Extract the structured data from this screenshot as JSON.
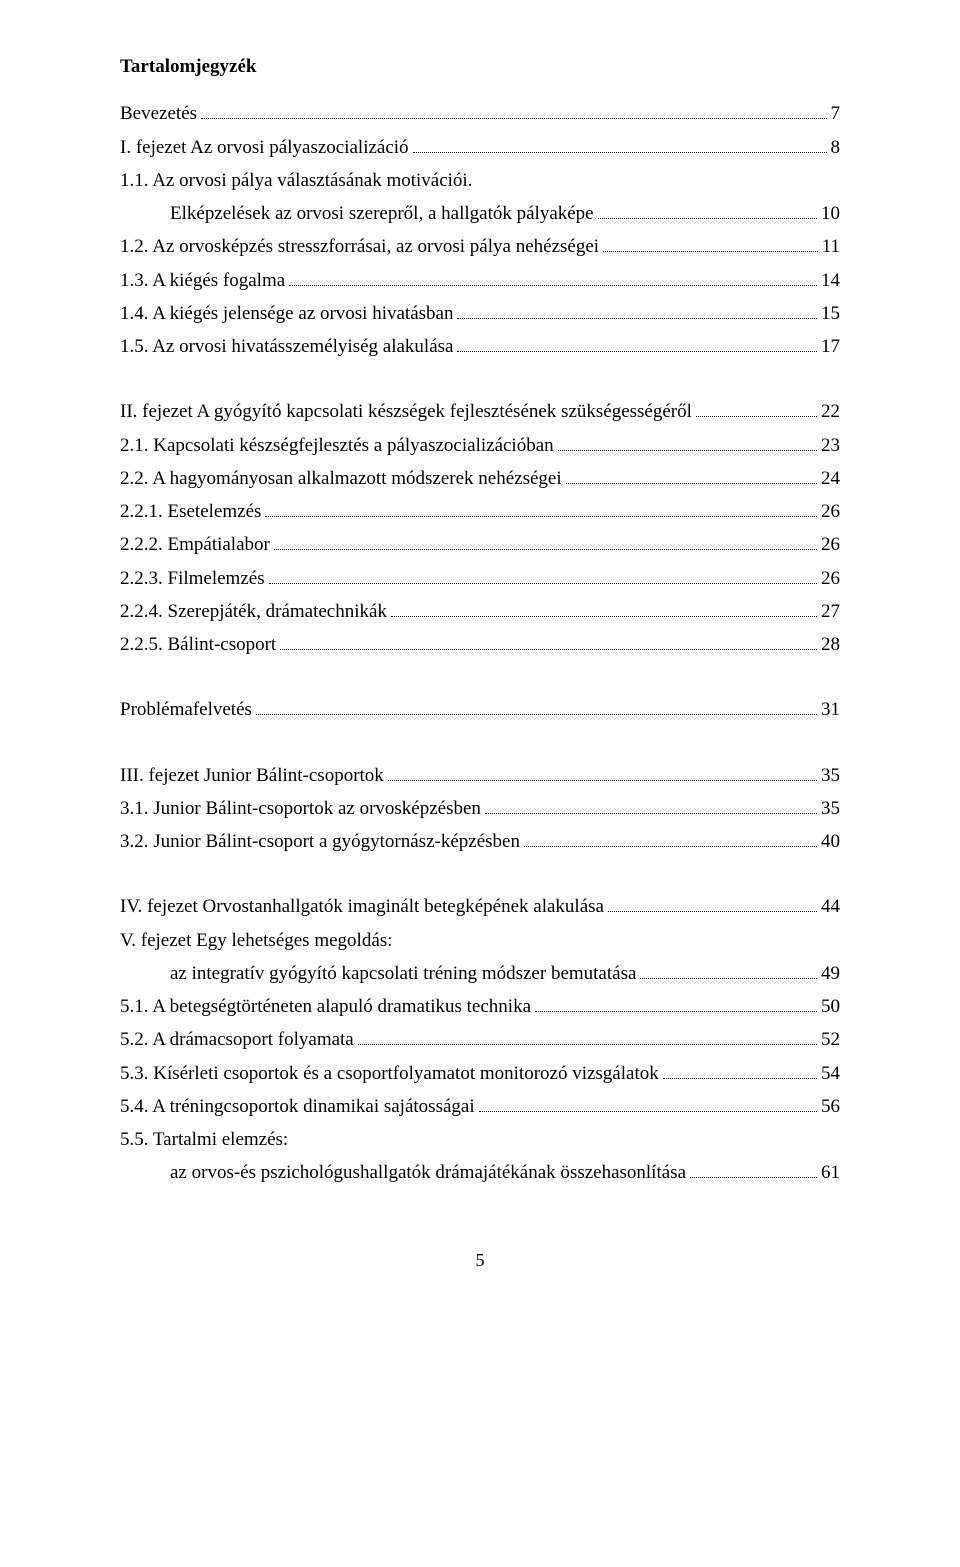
{
  "title": "Tartalomjegyzék",
  "page_number": "5",
  "toc": [
    {
      "label": "Bevezetés",
      "page": "7",
      "indent": 0,
      "gap": false
    },
    {
      "label": "I. fejezet Az orvosi pályaszocializáció",
      "page": "8",
      "indent": 0,
      "gap": false
    },
    {
      "label": "1.1. Az orvosi pálya választásának motivációi.",
      "page": "",
      "indent": 0,
      "gap": false,
      "no_page": true
    },
    {
      "label": "Elképzelések az orvosi szerepről, a hallgatók pályaképe",
      "page": "10",
      "indent": 1,
      "gap": false
    },
    {
      "label": "1.2. Az orvosképzés stresszforrásai, az orvosi pálya nehézségei",
      "page": "11",
      "indent": 0,
      "gap": false
    },
    {
      "label": "1.3. A kiégés fogalma",
      "page": "14",
      "indent": 0,
      "gap": false
    },
    {
      "label": "1.4. A kiégés jelensége az orvosi hivatásban",
      "page": "15",
      "indent": 0,
      "gap": false
    },
    {
      "label": "1.5. Az orvosi hivatásszemélyiség alakulása",
      "page": "17",
      "indent": 0,
      "gap": false
    },
    {
      "label": "II. fejezet  A gyógyító kapcsolati készségek fejlesztésének szükségességéről",
      "page": "22",
      "indent": 0,
      "gap": true
    },
    {
      "label": "2.1. Kapcsolati készségfejlesztés a pályaszocializációban",
      "page": "23",
      "indent": 0,
      "gap": false
    },
    {
      "label": "2.2. A hagyományosan alkalmazott módszerek nehézségei",
      "page": "24",
      "indent": 0,
      "gap": false
    },
    {
      "label": "2.2.1. Esetelemzés",
      "page": "26",
      "indent": 0,
      "gap": false
    },
    {
      "label": "2.2.2. Empátialabor",
      "page": "26",
      "indent": 0,
      "gap": false
    },
    {
      "label": "2.2.3. Filmelemzés",
      "page": "26",
      "indent": 0,
      "gap": false
    },
    {
      "label": "2.2.4. Szerepjáték, drámatechnikák",
      "page": "27",
      "indent": 0,
      "gap": false
    },
    {
      "label": "2.2.5. Bálint-csoport",
      "page": "28",
      "indent": 0,
      "gap": false
    },
    {
      "label": "Problémafelvetés",
      "page": "31",
      "indent": 0,
      "gap": true
    },
    {
      "label": "III. fejezet Junior Bálint-csoportok",
      "page": "35",
      "indent": 0,
      "gap": true
    },
    {
      "label": "3.1. Junior Bálint-csoportok az orvosképzésben",
      "page": "35",
      "indent": 0,
      "gap": false
    },
    {
      "label": "3.2. Junior Bálint-csoport a gyógytornász-képzésben",
      "page": "40",
      "indent": 0,
      "gap": false
    },
    {
      "label": "IV. fejezet Orvostanhallgatók imaginált betegképének alakulása",
      "page": "44",
      "indent": 0,
      "gap": true
    },
    {
      "label": "V. fejezet Egy lehetséges megoldás:",
      "page": "",
      "indent": 0,
      "gap": false,
      "no_page": true
    },
    {
      "label": "az integratív gyógyító kapcsolati tréning módszer bemutatása",
      "page": "49",
      "indent": 1,
      "gap": false
    },
    {
      "label": "5.1. A betegségtörténeten alapuló dramatikus technika",
      "page": "50",
      "indent": 0,
      "gap": false
    },
    {
      "label": "5.2. A drámacsoport folyamata",
      "page": "52",
      "indent": 0,
      "gap": false
    },
    {
      "label": "5.3. Kísérleti csoportok és a csoportfolyamatot monitorozó vizsgálatok",
      "page": "54",
      "indent": 0,
      "gap": false
    },
    {
      "label": "5.4. A tréningcsoportok dinamikai sajátosságai",
      "page": "56",
      "indent": 0,
      "gap": false
    },
    {
      "label": "5.5. Tartalmi elemzés:",
      "page": "",
      "indent": 0,
      "gap": false,
      "no_page": true
    },
    {
      "label": "az orvos-és pszichológushallgatók drámajátékának összehasonlítása",
      "page": "61",
      "indent": 1,
      "gap": false
    }
  ]
}
